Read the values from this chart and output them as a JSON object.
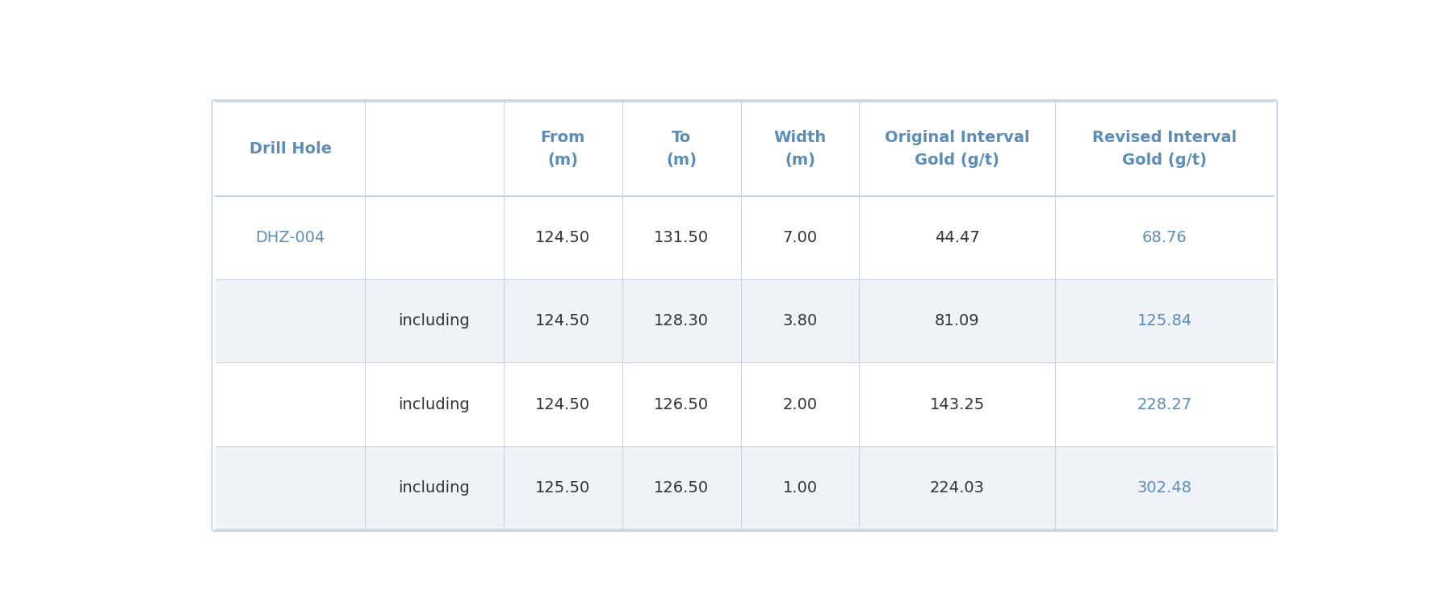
{
  "headers": [
    [
      "Drill Hole",
      "",
      "From\n(m)",
      "To\n(m)",
      "Width\n(m)",
      "Original Interval\nGold (g/t)",
      "Revised Interval\nGold (g/t)"
    ]
  ],
  "rows": [
    [
      "DHZ-004",
      "",
      "124.50",
      "131.50",
      "7.00",
      "44.47",
      "68.76"
    ],
    [
      "",
      "including",
      "124.50",
      "128.30",
      "3.80",
      "81.09",
      "125.84"
    ],
    [
      "",
      "including",
      "124.50",
      "126.50",
      "2.00",
      "143.25",
      "228.27"
    ],
    [
      "",
      "including",
      "125.50",
      "126.50",
      "1.00",
      "224.03",
      "302.48"
    ]
  ],
  "header_color": "#5b8db8",
  "drill_hole_color": "#5b8db8",
  "revised_color": "#5b8db8",
  "normal_color": "#333333",
  "row_bg_white": "#ffffff",
  "row_bg_gray": "#eff2f6",
  "header_bg": "#ffffff",
  "border_color": "#c5d5e5",
  "outer_border_color": "#c0d0e0",
  "background_color": "#ffffff",
  "header_fontsize": 14,
  "cell_fontsize": 14,
  "fig_width": 18.0,
  "fig_height": 7.57
}
